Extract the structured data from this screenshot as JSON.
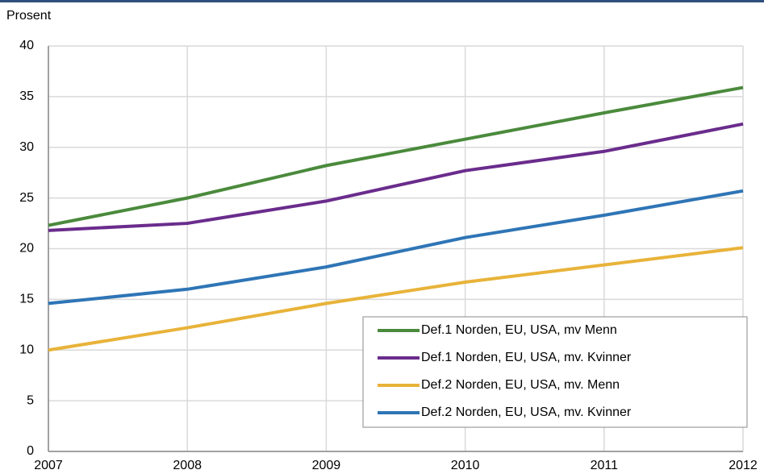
{
  "chart_data": {
    "type": "line",
    "y_label": "Prosent",
    "x": [
      2007,
      2008,
      2009,
      2010,
      2011,
      2012
    ],
    "xlim": [
      2007,
      2012
    ],
    "xticks": [
      2007,
      2008,
      2009,
      2010,
      2011,
      2012
    ],
    "ylim": [
      0,
      40
    ],
    "yticks": [
      0,
      5,
      10,
      15,
      20,
      25,
      30,
      35,
      40
    ],
    "grid": true,
    "legend": "lower right",
    "series": [
      {
        "name": "Def.1 Norden, EU, USA, mv Menn",
        "color": "#4a8a3c",
        "values": [
          22.3,
          25.0,
          28.2,
          30.8,
          33.4,
          35.9
        ]
      },
      {
        "name": "Def.1 Norden, EU, USA, mv. Kvinner",
        "color": "#6a2c8c",
        "values": [
          21.8,
          22.5,
          24.7,
          27.7,
          29.6,
          32.3
        ]
      },
      {
        "name": "Def.2 Norden, EU, USA, mv. Menn",
        "color": "#e8b33a",
        "values": [
          10.0,
          12.2,
          14.6,
          16.7,
          18.4,
          20.1
        ]
      },
      {
        "name": "Def.2 Norden, EU, USA, mv. Kvinner",
        "color": "#2e75b6",
        "values": [
          14.6,
          16.0,
          18.2,
          21.1,
          23.3,
          25.7
        ]
      }
    ]
  }
}
